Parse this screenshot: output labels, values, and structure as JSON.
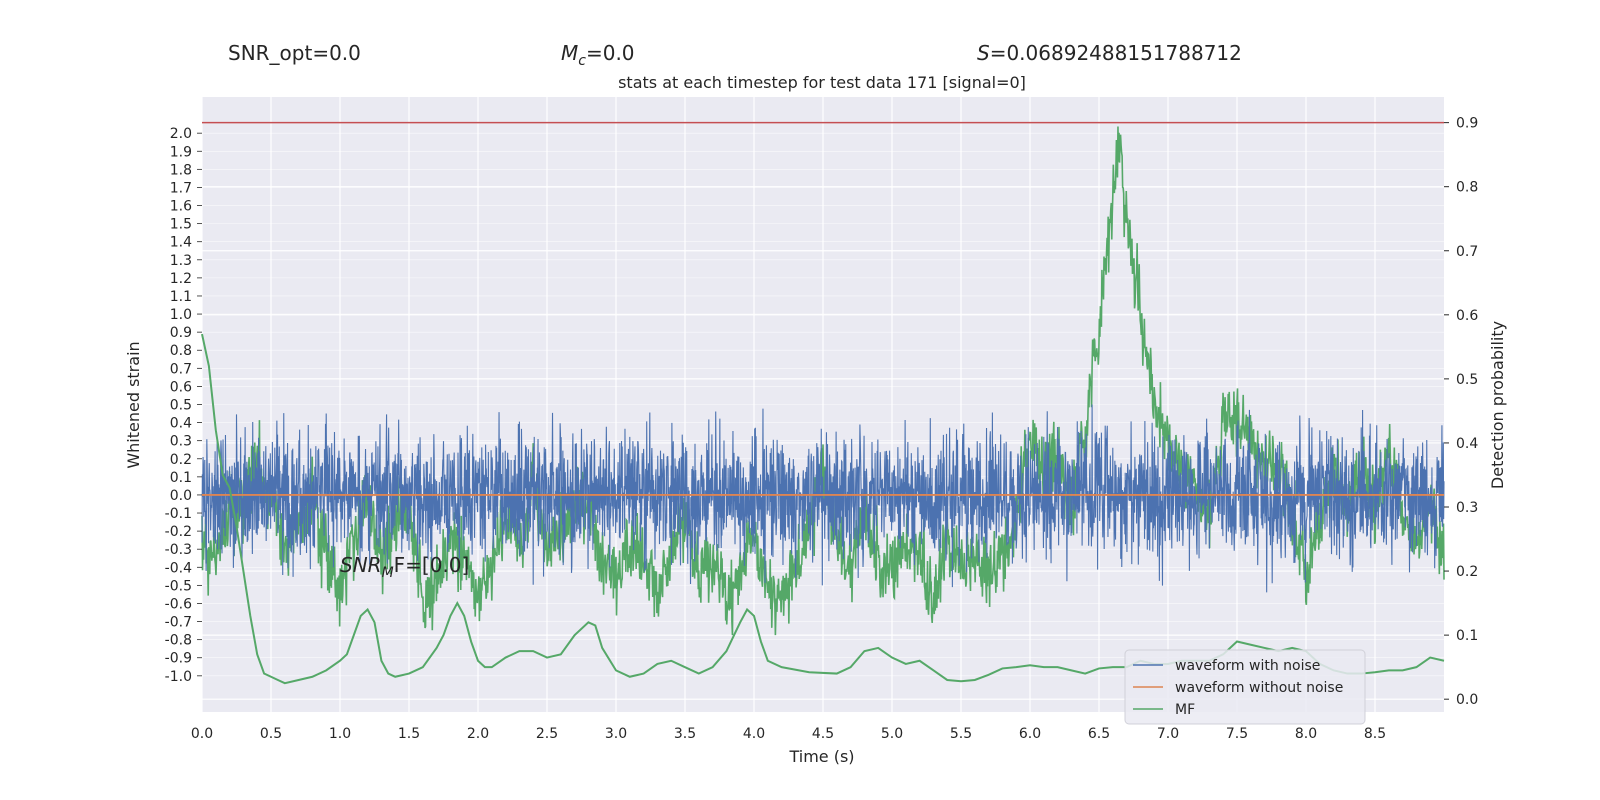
{
  "header": {
    "snr_opt": "SNR_opt=0.0",
    "mc_symbol": "M",
    "mc_sub": "c",
    "mc_value": "=0.0",
    "s_symbol": "S",
    "s_value": "=0.06892488151788712",
    "title": "stats at each timestep for test data 171 [signal=0]"
  },
  "annotation": {
    "snr_mf_main": "SNR",
    "snr_mf_sub": "M",
    "snr_mf_rest": "F=[0.0]"
  },
  "colors": {
    "background": "#eaeaf2",
    "grid": "#ffffff",
    "noise": "#4c72b0",
    "clean": "#dd8452",
    "mf": "#55a868",
    "threshold": "#c44e52"
  },
  "chart_data": {
    "type": "line",
    "xlabel": "Time (s)",
    "ylabel_left": "Whitened strain",
    "ylabel_right": "Detection probability",
    "xlim": [
      0,
      9
    ],
    "ylim_right": [
      -0.02,
      0.94
    ],
    "ylim_left": [
      -1.2,
      2.2
    ],
    "x_ticks": [
      "0.0",
      "0.5",
      "1.0",
      "1.5",
      "2.0",
      "2.5",
      "3.0",
      "3.5",
      "4.0",
      "4.5",
      "5.0",
      "5.5",
      "6.0",
      "6.5",
      "7.0",
      "7.5",
      "8.0",
      "8.5"
    ],
    "right_ticks": [
      "0.0",
      "0.1",
      "0.2",
      "0.3",
      "0.4",
      "0.5",
      "0.6",
      "0.7",
      "0.8",
      "0.9"
    ],
    "left_ticks": [
      "-1.0",
      "-0.9",
      "-0.8",
      "-0.7",
      "-0.6",
      "-0.5",
      "-0.4",
      "-0.3",
      "-0.2",
      "-0.1",
      "0.0",
      "0.1",
      "0.2",
      "0.3",
      "0.4",
      "0.5",
      "0.6",
      "0.7",
      "0.8",
      "0.9",
      "1.0",
      "1.1",
      "1.2",
      "1.3",
      "1.4",
      "1.5",
      "1.6",
      "1.7",
      "1.8",
      "1.9",
      "2.0"
    ],
    "threshold": 0.9,
    "legend": {
      "placement": "lower-right",
      "entries": [
        "waveform with noise",
        "waveform without noise",
        "MF"
      ]
    },
    "series": [
      {
        "name": "waveform with noise",
        "axis": "left",
        "noise_amplitude": 0.35
      },
      {
        "name": "waveform without noise",
        "axis": "left",
        "values": [
          [
            0,
            0.0
          ],
          [
            9,
            0.0
          ]
        ]
      },
      {
        "name": "MF",
        "axis": "right",
        "values": [
          [
            0.0,
            0.57
          ],
          [
            0.05,
            0.52
          ],
          [
            0.1,
            0.42
          ],
          [
            0.15,
            0.35
          ],
          [
            0.2,
            0.33
          ],
          [
            0.25,
            0.27
          ],
          [
            0.3,
            0.2
          ],
          [
            0.35,
            0.13
          ],
          [
            0.4,
            0.07
          ],
          [
            0.45,
            0.04
          ],
          [
            0.5,
            0.035
          ],
          [
            0.55,
            0.03
          ],
          [
            0.6,
            0.025
          ],
          [
            0.7,
            0.03
          ],
          [
            0.8,
            0.035
          ],
          [
            0.9,
            0.045
          ],
          [
            1.0,
            0.06
          ],
          [
            1.05,
            0.07
          ],
          [
            1.1,
            0.1
          ],
          [
            1.15,
            0.13
          ],
          [
            1.2,
            0.14
          ],
          [
            1.25,
            0.12
          ],
          [
            1.3,
            0.06
          ],
          [
            1.35,
            0.04
          ],
          [
            1.4,
            0.035
          ],
          [
            1.5,
            0.04
          ],
          [
            1.6,
            0.05
          ],
          [
            1.7,
            0.08
          ],
          [
            1.75,
            0.1
          ],
          [
            1.8,
            0.13
          ],
          [
            1.85,
            0.15
          ],
          [
            1.9,
            0.13
          ],
          [
            1.95,
            0.09
          ],
          [
            2.0,
            0.06
          ],
          [
            2.05,
            0.05
          ],
          [
            2.1,
            0.05
          ],
          [
            2.2,
            0.065
          ],
          [
            2.3,
            0.075
          ],
          [
            2.4,
            0.075
          ],
          [
            2.5,
            0.065
          ],
          [
            2.6,
            0.07
          ],
          [
            2.7,
            0.1
          ],
          [
            2.8,
            0.12
          ],
          [
            2.85,
            0.115
          ],
          [
            2.9,
            0.08
          ],
          [
            3.0,
            0.045
          ],
          [
            3.1,
            0.035
          ],
          [
            3.2,
            0.04
          ],
          [
            3.3,
            0.055
          ],
          [
            3.4,
            0.06
          ],
          [
            3.5,
            0.05
          ],
          [
            3.6,
            0.04
          ],
          [
            3.7,
            0.05
          ],
          [
            3.8,
            0.075
          ],
          [
            3.9,
            0.12
          ],
          [
            3.95,
            0.14
          ],
          [
            4.0,
            0.13
          ],
          [
            4.05,
            0.09
          ],
          [
            4.1,
            0.06
          ],
          [
            4.2,
            0.05
          ],
          [
            4.4,
            0.042
          ],
          [
            4.6,
            0.04
          ],
          [
            4.7,
            0.05
          ],
          [
            4.8,
            0.075
          ],
          [
            4.9,
            0.08
          ],
          [
            5.0,
            0.065
          ],
          [
            5.1,
            0.055
          ],
          [
            5.2,
            0.06
          ],
          [
            5.3,
            0.045
          ],
          [
            5.4,
            0.03
          ],
          [
            5.5,
            0.028
          ],
          [
            5.6,
            0.03
          ],
          [
            5.7,
            0.038
          ],
          [
            5.8,
            0.048
          ],
          [
            5.9,
            0.05
          ],
          [
            6.0,
            0.053
          ],
          [
            6.1,
            0.05
          ],
          [
            6.2,
            0.05
          ],
          [
            6.3,
            0.045
          ],
          [
            6.4,
            0.04
          ],
          [
            6.5,
            0.048
          ],
          [
            6.6,
            0.05
          ],
          [
            6.7,
            0.05
          ],
          [
            6.8,
            0.06
          ],
          [
            6.9,
            0.055
          ],
          [
            7.0,
            0.055
          ],
          [
            7.1,
            0.06
          ],
          [
            7.2,
            0.06
          ],
          [
            7.3,
            0.06
          ],
          [
            7.4,
            0.07
          ],
          [
            7.5,
            0.09
          ],
          [
            7.6,
            0.085
          ],
          [
            7.7,
            0.08
          ],
          [
            7.8,
            0.075
          ],
          [
            7.9,
            0.08
          ],
          [
            8.0,
            0.075
          ],
          [
            8.1,
            0.055
          ],
          [
            8.2,
            0.045
          ],
          [
            8.3,
            0.04
          ],
          [
            8.4,
            0.04
          ],
          [
            8.5,
            0.042
          ],
          [
            8.6,
            0.045
          ],
          [
            8.7,
            0.045
          ],
          [
            8.8,
            0.05
          ],
          [
            8.9,
            0.065
          ],
          [
            9.0,
            0.06
          ]
        ]
      },
      {
        "name": "",
        "axis": "right",
        "noise_amplitude": 0.045,
        "values": [
          [
            0.0,
            0.24
          ],
          [
            0.1,
            0.22
          ],
          [
            0.2,
            0.3
          ],
          [
            0.3,
            0.3
          ],
          [
            0.4,
            0.37
          ],
          [
            0.5,
            0.32
          ],
          [
            0.6,
            0.24
          ],
          [
            0.7,
            0.28
          ],
          [
            0.8,
            0.3
          ],
          [
            0.9,
            0.22
          ],
          [
            1.0,
            0.18
          ],
          [
            1.1,
            0.24
          ],
          [
            1.2,
            0.33
          ],
          [
            1.3,
            0.22
          ],
          [
            1.4,
            0.28
          ],
          [
            1.5,
            0.3
          ],
          [
            1.6,
            0.15
          ],
          [
            1.7,
            0.18
          ],
          [
            1.8,
            0.26
          ],
          [
            1.9,
            0.22
          ],
          [
            2.0,
            0.16
          ],
          [
            2.1,
            0.2
          ],
          [
            2.2,
            0.28
          ],
          [
            2.3,
            0.24
          ],
          [
            2.4,
            0.33
          ],
          [
            2.5,
            0.22
          ],
          [
            2.6,
            0.26
          ],
          [
            2.7,
            0.3
          ],
          [
            2.8,
            0.3
          ],
          [
            2.9,
            0.22
          ],
          [
            3.0,
            0.18
          ],
          [
            3.1,
            0.25
          ],
          [
            3.2,
            0.22
          ],
          [
            3.3,
            0.16
          ],
          [
            3.4,
            0.24
          ],
          [
            3.5,
            0.28
          ],
          [
            3.6,
            0.2
          ],
          [
            3.7,
            0.22
          ],
          [
            3.8,
            0.15
          ],
          [
            3.9,
            0.2
          ],
          [
            4.0,
            0.25
          ],
          [
            4.1,
            0.18
          ],
          [
            4.2,
            0.15
          ],
          [
            4.3,
            0.2
          ],
          [
            4.4,
            0.26
          ],
          [
            4.5,
            0.36
          ],
          [
            4.6,
            0.25
          ],
          [
            4.7,
            0.2
          ],
          [
            4.8,
            0.3
          ],
          [
            4.9,
            0.22
          ],
          [
            5.0,
            0.2
          ],
          [
            5.1,
            0.26
          ],
          [
            5.2,
            0.22
          ],
          [
            5.3,
            0.16
          ],
          [
            5.4,
            0.24
          ],
          [
            5.5,
            0.21
          ],
          [
            5.6,
            0.23
          ],
          [
            5.7,
            0.2
          ],
          [
            5.8,
            0.22
          ],
          [
            5.9,
            0.28
          ],
          [
            6.0,
            0.4
          ],
          [
            6.1,
            0.36
          ],
          [
            6.2,
            0.38
          ],
          [
            6.3,
            0.3
          ],
          [
            6.4,
            0.42
          ],
          [
            6.5,
            0.58
          ],
          [
            6.6,
            0.78
          ],
          [
            6.65,
            0.88
          ],
          [
            6.7,
            0.74
          ],
          [
            6.8,
            0.6
          ],
          [
            6.9,
            0.46
          ],
          [
            7.0,
            0.4
          ],
          [
            7.1,
            0.36
          ],
          [
            7.2,
            0.34
          ],
          [
            7.3,
            0.3
          ],
          [
            7.4,
            0.42
          ],
          [
            7.5,
            0.44
          ],
          [
            7.6,
            0.4
          ],
          [
            7.7,
            0.38
          ],
          [
            7.8,
            0.36
          ],
          [
            7.9,
            0.3
          ],
          [
            8.0,
            0.2
          ],
          [
            8.1,
            0.28
          ],
          [
            8.2,
            0.36
          ],
          [
            8.3,
            0.3
          ],
          [
            8.4,
            0.36
          ],
          [
            8.5,
            0.3
          ],
          [
            8.6,
            0.38
          ],
          [
            8.7,
            0.3
          ],
          [
            8.8,
            0.24
          ],
          [
            8.9,
            0.32
          ],
          [
            9.0,
            0.22
          ]
        ]
      }
    ]
  }
}
